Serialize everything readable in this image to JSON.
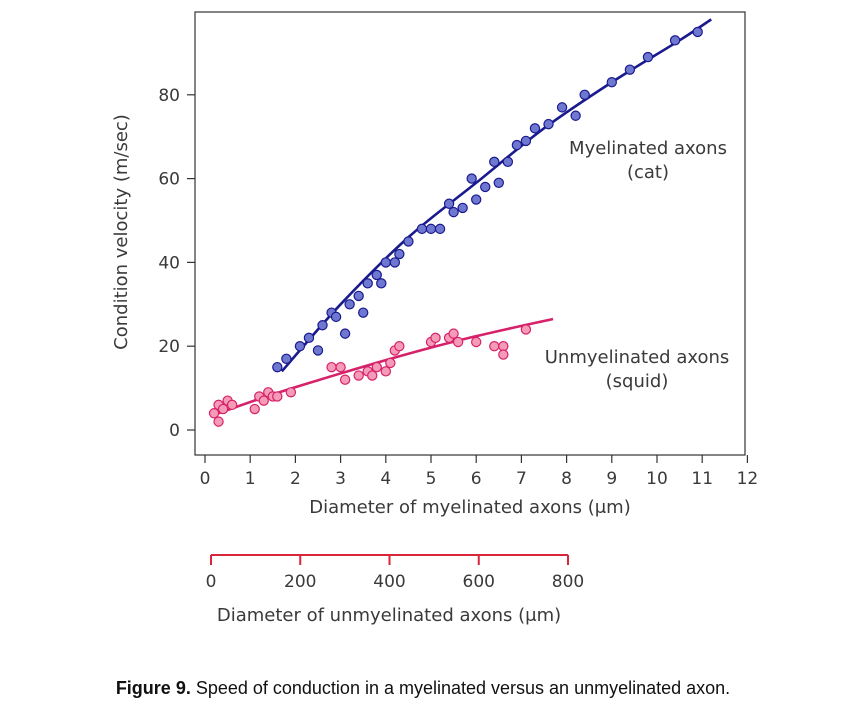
{
  "chart_data": {
    "type": "scatter",
    "xlabel": "Diameter of myelinated axons (μm)",
    "ylabel": "Condition velocity (m/sec)",
    "xlim": [
      -0.2,
      12
    ],
    "ylim": [
      -4,
      100
    ],
    "x_ticks": [
      "0",
      "1",
      "2",
      "3",
      "4",
      "5",
      "6",
      "7",
      "8",
      "9",
      "10",
      "11",
      "12"
    ],
    "y_ticks": [
      "0",
      "20",
      "40",
      "60",
      "80"
    ],
    "secondary_axis": {
      "label": "Diameter of unmyelinated axons (μm)",
      "range": [
        0,
        800
      ],
      "ticks": [
        "0",
        "200",
        "400",
        "600",
        "800"
      ],
      "color": "#d9263a"
    },
    "series": [
      {
        "name": "Myelinated axons (cat)",
        "label_line1": "Myelinated axons",
        "label_line2": "(cat)",
        "color": "#1a1a8f",
        "point_color": "#6f78d0",
        "points": [
          [
            1.6,
            15
          ],
          [
            1.8,
            17
          ],
          [
            2.1,
            20
          ],
          [
            2.3,
            22
          ],
          [
            2.5,
            19
          ],
          [
            2.6,
            25
          ],
          [
            2.8,
            28
          ],
          [
            2.9,
            27
          ],
          [
            3.1,
            23
          ],
          [
            3.2,
            30
          ],
          [
            3.4,
            32
          ],
          [
            3.5,
            28
          ],
          [
            3.6,
            35
          ],
          [
            3.8,
            37
          ],
          [
            3.9,
            35
          ],
          [
            4.0,
            40
          ],
          [
            4.2,
            40
          ],
          [
            4.3,
            42
          ],
          [
            4.5,
            45
          ],
          [
            4.8,
            48
          ],
          [
            5.0,
            48
          ],
          [
            5.2,
            48
          ],
          [
            5.4,
            54
          ],
          [
            5.5,
            52
          ],
          [
            5.7,
            53
          ],
          [
            5.9,
            60
          ],
          [
            6.0,
            55
          ],
          [
            6.2,
            58
          ],
          [
            6.4,
            64
          ],
          [
            6.5,
            59
          ],
          [
            6.7,
            64
          ],
          [
            6.9,
            68
          ],
          [
            7.1,
            69
          ],
          [
            7.3,
            72
          ],
          [
            7.6,
            73
          ],
          [
            7.9,
            77
          ],
          [
            8.2,
            75
          ],
          [
            8.4,
            80
          ],
          [
            9.0,
            83
          ],
          [
            9.4,
            86
          ],
          [
            9.8,
            89
          ],
          [
            10.4,
            93
          ],
          [
            10.9,
            95
          ]
        ],
        "trend": [
          [
            1.7,
            14
          ],
          [
            3,
            30
          ],
          [
            4.5,
            46
          ],
          [
            6,
            59
          ],
          [
            7.5,
            72
          ],
          [
            9,
            83
          ],
          [
            10.5,
            93
          ],
          [
            11.2,
            98
          ]
        ]
      },
      {
        "name": "Unmyelinated axons (squid)",
        "label_line1": "Unmyelinated axons",
        "label_line2": "(squid)",
        "color": "#d6226a",
        "point_color": "#f59ab7",
        "points": [
          [
            0.2,
            4
          ],
          [
            0.3,
            6
          ],
          [
            0.3,
            2
          ],
          [
            0.4,
            5
          ],
          [
            0.5,
            7
          ],
          [
            0.6,
            6
          ],
          [
            1.1,
            5
          ],
          [
            1.2,
            8
          ],
          [
            1.3,
            7
          ],
          [
            1.4,
            9
          ],
          [
            1.5,
            8
          ],
          [
            1.6,
            8
          ],
          [
            1.9,
            9
          ],
          [
            2.8,
            15
          ],
          [
            3.0,
            15
          ],
          [
            3.1,
            12
          ],
          [
            3.4,
            13
          ],
          [
            3.6,
            14
          ],
          [
            3.7,
            13
          ],
          [
            3.8,
            15
          ],
          [
            4.0,
            14
          ],
          [
            4.1,
            16
          ],
          [
            4.2,
            19
          ],
          [
            4.3,
            20
          ],
          [
            5.0,
            21
          ],
          [
            5.1,
            22
          ],
          [
            5.4,
            22
          ],
          [
            5.5,
            23
          ],
          [
            5.6,
            21
          ],
          [
            6.0,
            21
          ],
          [
            6.4,
            20
          ],
          [
            6.6,
            20
          ],
          [
            6.6,
            18
          ],
          [
            7.1,
            24
          ]
        ],
        "trend": [
          [
            0.3,
            4
          ],
          [
            1.5,
            8.5
          ],
          [
            3,
            13.5
          ],
          [
            4.5,
            18.2
          ],
          [
            6,
            22.4
          ],
          [
            7.7,
            26.5
          ]
        ]
      }
    ]
  },
  "caption": {
    "label": "Figure 9.",
    "text": " Speed of conduction in a myelinated versus an unmyelinated axon."
  }
}
